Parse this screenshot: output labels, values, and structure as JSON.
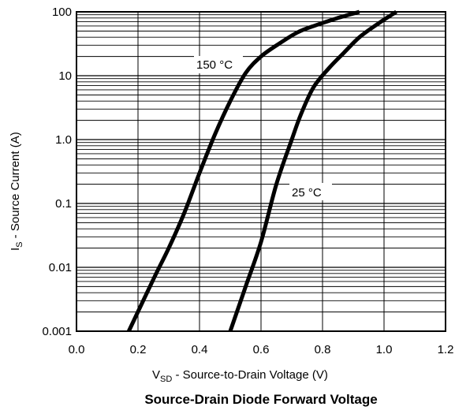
{
  "chart_data": {
    "type": "line",
    "title": "Source-Drain Diode Forward Voltage",
    "xlabel": {
      "main": "V",
      "sub": "SD",
      "rest": " - Source-to-Drain Voltage (V)"
    },
    "ylabel": {
      "main": "I",
      "sub": "S",
      "rest": " - Source Current (A)"
    },
    "xlim": [
      0.0,
      1.2
    ],
    "ylim": [
      0.001,
      100
    ],
    "yscale": "log",
    "x_ticks": [
      "0.0",
      "0.2",
      "0.4",
      "0.6",
      "0.8",
      "1.0",
      "1.2"
    ],
    "y_ticks": [
      "0.001",
      "0.01",
      "0.1",
      "1.0",
      "10",
      "100"
    ],
    "grid": true,
    "series": [
      {
        "name": "150 °C",
        "x": [
          0.17,
          0.25,
          0.3,
          0.35,
          0.4,
          0.45,
          0.5,
          0.55,
          0.6,
          0.66,
          0.72,
          0.78,
          0.85,
          0.92
        ],
        "y": [
          0.001,
          0.0065,
          0.02,
          0.07,
          0.3,
          1.2,
          4.0,
          11,
          20,
          32,
          48,
          62,
          80,
          100
        ]
      },
      {
        "name": "25 °C",
        "x": [
          0.5,
          0.55,
          0.6,
          0.65,
          0.7,
          0.73,
          0.77,
          0.82,
          0.87,
          0.92,
          0.98,
          1.04
        ],
        "y": [
          0.001,
          0.005,
          0.025,
          0.2,
          1.0,
          2.5,
          6.5,
          13,
          23,
          40,
          65,
          100
        ]
      }
    ],
    "annotations": [
      "150 °C",
      "25 °C"
    ]
  }
}
